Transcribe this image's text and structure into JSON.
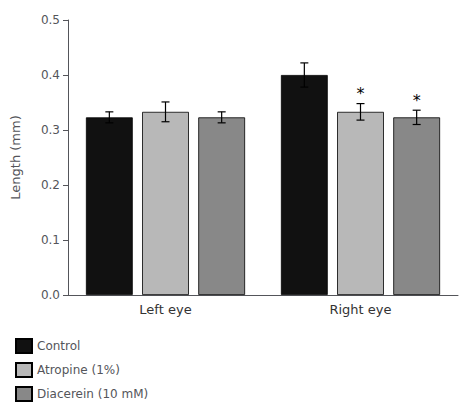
{
  "chart_data": {
    "type": "bar",
    "categories": [
      "Left eye",
      "Right eye"
    ],
    "series": [
      {
        "name": "Control",
        "color": "#111111",
        "values": [
          0.323,
          0.4
        ],
        "errors": [
          0.01,
          0.022
        ],
        "annotations": [
          null,
          null
        ]
      },
      {
        "name": "Atropine (1%)",
        "color": "#b8b8b8",
        "values": [
          0.333,
          0.333
        ],
        "errors": [
          0.018,
          0.015
        ],
        "annotations": [
          null,
          "*"
        ]
      },
      {
        "name": "Diacerein (10 mM)",
        "color": "#888888",
        "values": [
          0.323,
          0.323
        ],
        "errors": [
          0.01,
          0.013
        ],
        "annotations": [
          null,
          "*"
        ]
      }
    ],
    "ylabel": "Length (mm)",
    "ylim": [
      0.0,
      0.5
    ],
    "yticks": [
      {
        "value": 0.0,
        "label": "0.0"
      },
      0.1,
      0.2,
      0.3,
      0.4,
      0.5
    ],
    "grid": false,
    "legend": "lower left"
  }
}
